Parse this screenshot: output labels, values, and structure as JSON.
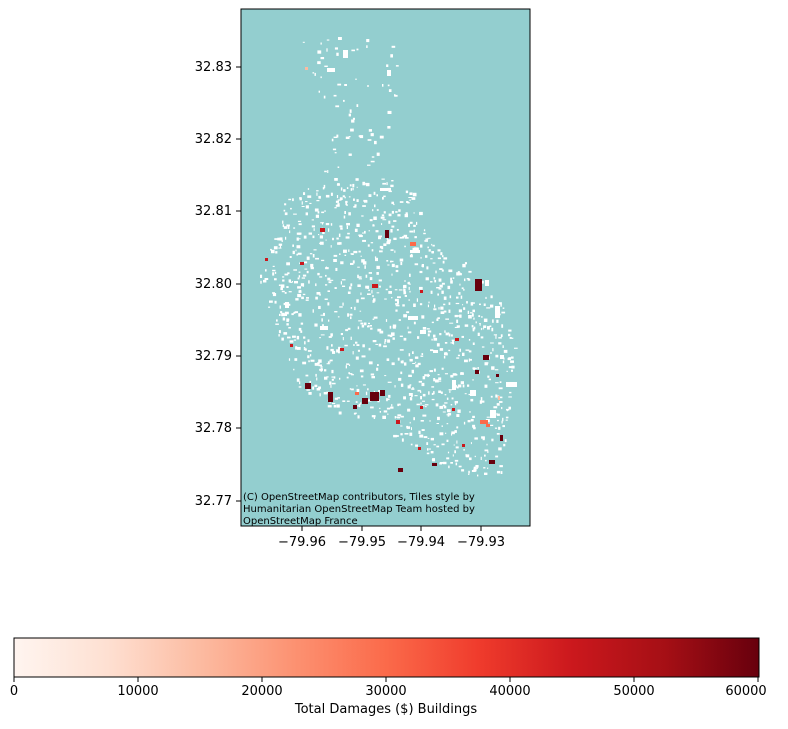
{
  "map": {
    "background_color": "#93cecf",
    "building_color": "#ffffff",
    "damage_colors": [
      "#fff5f0",
      "#fcbba1",
      "#fb6a4a",
      "#cb181d",
      "#67000d"
    ],
    "y_ticks": [
      "32.83",
      "32.82",
      "32.81",
      "32.80",
      "32.79",
      "32.78",
      "32.77"
    ],
    "x_ticks": [
      "−79.96",
      "−79.95",
      "−79.94",
      "−79.93"
    ],
    "attribution": [
      "(C) OpenStreetMap contributors, Tiles style by",
      "Humanitarian OpenStreetMap Team hosted by",
      "OpenStreetMap France"
    ]
  },
  "colorbar": {
    "colormap": "Reds",
    "min": 0,
    "max": 60000,
    "ticks": [
      "0",
      "10000",
      "20000",
      "30000",
      "40000",
      "50000",
      "60000"
    ],
    "label": "Total Damages ($) Buildings"
  }
}
